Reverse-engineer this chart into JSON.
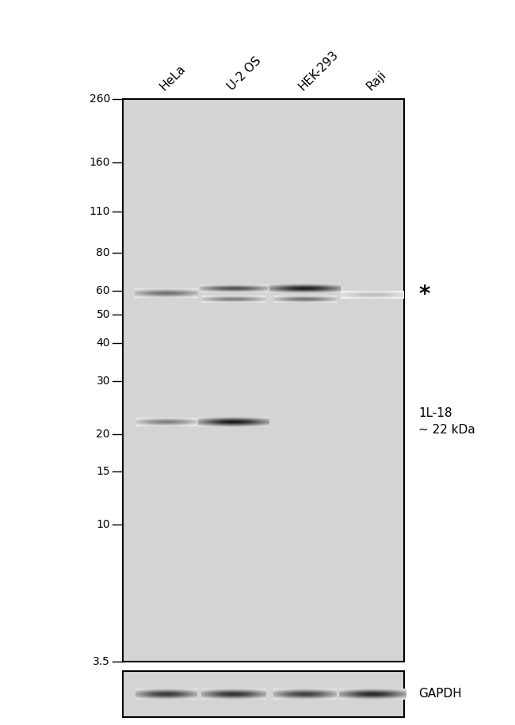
{
  "figure_width": 6.5,
  "figure_height": 9.15,
  "dpi": 100,
  "bg_color": "#ffffff",
  "gel_bg_color": "#d4d4d4",
  "gel_border_color": "#000000",
  "lane_labels": [
    "HeLa",
    "U-2 OS",
    "HEK-293",
    "Raji"
  ],
  "mw_markers": [
    260,
    160,
    110,
    80,
    60,
    50,
    40,
    30,
    20,
    15,
    10,
    3.5
  ],
  "annotation_star": "*",
  "annotation_il18": "1L-18\n~ 22 kDa",
  "annotation_gapdh": "GAPDH",
  "marker_fontsize": 10,
  "annotation_fontsize": 11,
  "column_label_fontsize": 11
}
